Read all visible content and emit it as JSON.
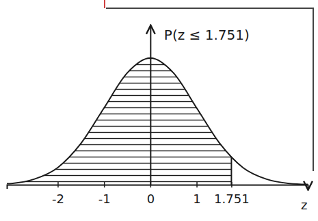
{
  "chart_data": {
    "type": "area",
    "title": "P(z ≤ 1.751)",
    "x_label": "z",
    "x": [
      -3.1,
      -3,
      -2.5,
      -2,
      -1.5,
      -1,
      -0.5,
      0,
      0.5,
      1,
      1.5,
      2,
      2.5,
      3,
      3.4
    ],
    "values": [
      0.003,
      0.004,
      0.018,
      0.054,
      0.13,
      0.242,
      0.352,
      0.399,
      0.352,
      0.242,
      0.13,
      0.054,
      0.018,
      0.004,
      0.001
    ],
    "shade_upper": 1.751,
    "xlim": [
      -3.1,
      3.4
    ],
    "xticks": [
      -2,
      -1,
      0,
      1,
      1.751
    ],
    "ylim": [
      0,
      0.5
    ],
    "tick_labels": "x",
    "grid": false,
    "color": "#1a1a1a"
  }
}
